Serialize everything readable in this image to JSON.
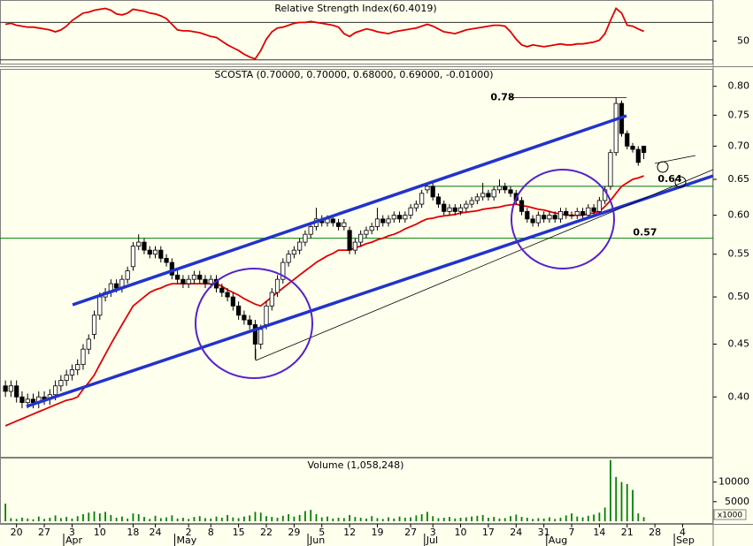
{
  "chart_data": [
    {
      "type": "line",
      "title": "Relative Strength Index(60.4019)",
      "color": "#e00000",
      "values": [
        68,
        69,
        67,
        66,
        65,
        65,
        64,
        63,
        62,
        60,
        62,
        66,
        72,
        76,
        80,
        81,
        83,
        84,
        85,
        83,
        79,
        78,
        80,
        84,
        83,
        82,
        80,
        79,
        77,
        74,
        68,
        62,
        61,
        61,
        60,
        59,
        57,
        55,
        54,
        50,
        46,
        43,
        40,
        36,
        33,
        31,
        40,
        52,
        60,
        64,
        65,
        67,
        69,
        70,
        70,
        71,
        70,
        69,
        68,
        67,
        65,
        58,
        55,
        59,
        61,
        63,
        62,
        60,
        59,
        58,
        60,
        61,
        62,
        63,
        64,
        66,
        68,
        66,
        63,
        60,
        59,
        58,
        60,
        62,
        63,
        64,
        65,
        66,
        67,
        67,
        66,
        60,
        52,
        46,
        44,
        46,
        45,
        44,
        45,
        46,
        47,
        46,
        46,
        47,
        47,
        48,
        49,
        51,
        58,
        72,
        85,
        80,
        67,
        66,
        63,
        60.4019,
        null,
        null,
        null,
        null,
        null,
        null,
        null,
        null,
        null,
        null,
        null,
        null
      ],
      "ylim": [
        26,
        93
      ],
      "yticks": [
        50
      ],
      "hlines": [
        30,
        70
      ]
    },
    {
      "type": "candlestick",
      "title": "SCOSTA (0.70000, 0.70000, 0.68000, 0.69000, -0.01000)",
      "log_scale": true,
      "open": [
        0.41,
        0.405,
        0.41,
        0.4,
        0.395,
        0.398,
        0.395,
        0.4,
        0.398,
        0.402,
        0.41,
        0.415,
        0.42,
        0.425,
        0.43,
        0.445,
        0.46,
        0.48,
        0.5,
        0.505,
        0.515,
        0.51,
        0.52,
        0.535,
        0.56,
        0.565,
        0.555,
        0.55,
        0.555,
        0.545,
        0.54,
        0.525,
        0.52,
        0.515,
        0.52,
        0.525,
        0.52,
        0.515,
        0.52,
        0.51,
        0.505,
        0.5,
        0.49,
        0.48,
        0.475,
        0.47,
        0.45,
        0.47,
        0.49,
        0.505,
        0.52,
        0.54,
        0.55,
        0.555,
        0.565,
        0.575,
        0.585,
        0.595,
        0.59,
        0.595,
        0.59,
        0.585,
        0.58,
        0.555,
        0.565,
        0.575,
        0.58,
        0.585,
        0.595,
        0.59,
        0.595,
        0.6,
        0.595,
        0.6,
        0.61,
        0.615,
        0.635,
        0.64,
        0.625,
        0.615,
        0.605,
        0.61,
        0.605,
        0.61,
        0.615,
        0.62,
        0.625,
        0.63,
        0.625,
        0.635,
        0.64,
        0.635,
        0.63,
        0.62,
        0.605,
        0.595,
        0.59,
        0.6,
        0.595,
        0.6,
        0.595,
        0.605,
        0.6,
        0.6,
        0.605,
        0.6,
        0.61,
        0.605,
        0.62,
        0.64,
        0.69,
        0.77,
        0.72,
        0.7,
        0.695,
        0.7,
        null,
        null,
        null,
        null,
        null,
        null,
        null,
        null,
        null,
        null,
        null,
        null
      ],
      "high": [
        0.415,
        0.415,
        0.415,
        0.405,
        0.403,
        0.403,
        0.405,
        0.405,
        0.407,
        0.415,
        0.42,
        0.425,
        0.43,
        0.435,
        0.45,
        0.46,
        0.485,
        0.505,
        0.51,
        0.52,
        0.52,
        0.525,
        0.535,
        0.565,
        0.575,
        0.57,
        0.56,
        0.56,
        0.56,
        0.55,
        0.545,
        0.53,
        0.525,
        0.525,
        0.53,
        0.53,
        0.525,
        0.525,
        0.525,
        0.515,
        0.51,
        0.505,
        0.495,
        0.485,
        0.48,
        0.475,
        0.47,
        0.495,
        0.51,
        0.525,
        0.545,
        0.555,
        0.56,
        0.57,
        0.58,
        0.59,
        0.61,
        0.6,
        0.6,
        0.6,
        0.595,
        0.595,
        0.585,
        0.57,
        0.58,
        0.585,
        0.59,
        0.61,
        0.6,
        0.6,
        0.605,
        0.605,
        0.605,
        0.615,
        0.62,
        0.635,
        0.645,
        0.645,
        0.63,
        0.62,
        0.615,
        0.615,
        0.615,
        0.62,
        0.625,
        0.63,
        0.645,
        0.635,
        0.64,
        0.65,
        0.645,
        0.64,
        0.635,
        0.625,
        0.61,
        0.6,
        0.605,
        0.605,
        0.605,
        0.605,
        0.61,
        0.61,
        0.605,
        0.61,
        0.61,
        0.615,
        0.615,
        0.625,
        0.64,
        0.695,
        0.78,
        0.775,
        0.725,
        0.705,
        0.7,
        0.7,
        null,
        null,
        null,
        null,
        null,
        null,
        null,
        null,
        null,
        null,
        null,
        null
      ],
      "low": [
        0.4,
        0.4,
        0.395,
        0.39,
        0.39,
        0.39,
        0.39,
        0.393,
        0.393,
        0.397,
        0.405,
        0.41,
        0.415,
        0.42,
        0.425,
        0.44,
        0.455,
        0.475,
        0.495,
        0.5,
        0.505,
        0.505,
        0.515,
        0.53,
        0.555,
        0.55,
        0.545,
        0.545,
        0.54,
        0.535,
        0.52,
        0.515,
        0.51,
        0.51,
        0.515,
        0.515,
        0.51,
        0.51,
        0.505,
        0.5,
        0.495,
        0.485,
        0.475,
        0.47,
        0.465,
        0.435,
        0.445,
        0.465,
        0.485,
        0.5,
        0.515,
        0.535,
        0.545,
        0.55,
        0.56,
        0.57,
        0.58,
        0.585,
        0.585,
        0.585,
        0.58,
        0.58,
        0.55,
        0.55,
        0.56,
        0.57,
        0.575,
        0.58,
        0.585,
        0.585,
        0.59,
        0.59,
        0.59,
        0.595,
        0.605,
        0.61,
        0.63,
        0.62,
        0.61,
        0.6,
        0.6,
        0.6,
        0.6,
        0.605,
        0.61,
        0.615,
        0.62,
        0.62,
        0.62,
        0.63,
        0.63,
        0.625,
        0.615,
        0.6,
        0.59,
        0.585,
        0.585,
        0.59,
        0.59,
        0.59,
        0.59,
        0.595,
        0.595,
        0.595,
        0.595,
        0.595,
        0.6,
        0.6,
        0.615,
        0.635,
        0.685,
        0.715,
        0.695,
        0.69,
        0.67,
        0.68,
        null,
        null,
        null,
        null,
        null,
        null,
        null,
        null,
        null,
        null,
        null,
        null
      ],
      "close": [
        0.405,
        0.41,
        0.4,
        0.395,
        0.398,
        0.395,
        0.4,
        0.398,
        0.402,
        0.41,
        0.415,
        0.42,
        0.425,
        0.43,
        0.445,
        0.455,
        0.48,
        0.5,
        0.505,
        0.515,
        0.51,
        0.52,
        0.53,
        0.56,
        0.565,
        0.555,
        0.55,
        0.555,
        0.545,
        0.54,
        0.525,
        0.52,
        0.515,
        0.52,
        0.525,
        0.52,
        0.515,
        0.52,
        0.51,
        0.505,
        0.5,
        0.49,
        0.48,
        0.475,
        0.47,
        0.45,
        0.465,
        0.49,
        0.505,
        0.52,
        0.54,
        0.55,
        0.555,
        0.565,
        0.575,
        0.585,
        0.595,
        0.59,
        0.595,
        0.59,
        0.585,
        0.59,
        0.555,
        0.565,
        0.575,
        0.58,
        0.585,
        0.595,
        0.59,
        0.595,
        0.6,
        0.595,
        0.6,
        0.61,
        0.615,
        0.63,
        0.64,
        0.625,
        0.615,
        0.605,
        0.61,
        0.605,
        0.61,
        0.615,
        0.62,
        0.625,
        0.63,
        0.625,
        0.635,
        0.64,
        0.635,
        0.63,
        0.62,
        0.605,
        0.595,
        0.59,
        0.6,
        0.595,
        0.6,
        0.595,
        0.605,
        0.6,
        0.6,
        0.605,
        0.6,
        0.61,
        0.605,
        0.62,
        0.635,
        0.69,
        0.77,
        0.72,
        0.7,
        0.695,
        0.675,
        0.69,
        null,
        null,
        null,
        null,
        null,
        null,
        null,
        null,
        null,
        null,
        null,
        null
      ],
      "series": [
        {
          "color": "#e00000",
          "values": [
            0.375,
            0.377,
            0.379,
            0.381,
            0.383,
            0.385,
            0.387,
            0.389,
            0.391,
            0.393,
            0.395,
            0.397,
            0.398,
            0.4,
            0.407,
            0.413,
            0.42,
            0.43,
            0.44,
            0.45,
            0.46,
            0.47,
            0.48,
            0.49,
            0.495,
            0.5,
            0.505,
            0.508,
            0.51,
            0.513,
            0.515,
            0.515,
            0.515,
            0.515,
            0.515,
            0.515,
            0.515,
            0.515,
            0.515,
            0.512,
            0.508,
            0.505,
            0.502,
            0.498,
            0.495,
            0.492,
            0.49,
            0.495,
            0.5,
            0.505,
            0.51,
            0.515,
            0.52,
            0.525,
            0.53,
            0.535,
            0.54,
            0.544,
            0.548,
            0.551,
            0.555,
            0.555,
            0.555,
            0.558,
            0.56,
            0.563,
            0.565,
            0.568,
            0.57,
            0.573,
            0.575,
            0.578,
            0.582,
            0.585,
            0.588,
            0.592,
            0.595,
            0.596,
            0.598,
            0.599,
            0.6,
            0.601,
            0.603,
            0.604,
            0.605,
            0.606,
            0.608,
            0.609,
            0.61,
            0.611,
            0.613,
            0.614,
            0.615,
            0.613,
            0.612,
            0.61,
            0.608,
            0.607,
            0.605,
            0.603,
            0.602,
            0.6,
            0.6,
            0.6,
            0.6,
            0.602,
            0.603,
            0.605,
            0.612,
            0.62,
            0.63,
            0.64,
            0.645,
            0.65,
            0.652,
            0.655,
            null,
            null,
            null,
            null,
            null,
            null,
            null,
            null,
            null,
            null,
            null,
            null
          ]
        }
      ],
      "ylim": [
        0.35,
        0.83
      ],
      "yticks": [
        {
          "value": 0.4,
          "label": "0.40"
        },
        0.45,
        {
          "value": 0.5,
          "label": "0.50"
        },
        0.55,
        {
          "value": 0.6,
          "label": "0.60"
        },
        0.65,
        {
          "value": 0.7,
          "label": "0.70"
        },
        0.75,
        {
          "value": 0.8,
          "label": "0.80"
        }
      ],
      "hlines": [
        {
          "value": 0.78,
          "color": "#e00000"
        },
        {
          "value": 0.64,
          "color": "#007000"
        },
        {
          "value": 0.57,
          "color": "#008000"
        }
      ]
    },
    {
      "type": "bar",
      "title": "Volume (1,058,248)",
      "color": "#008000",
      "unit_label": "x1000",
      "categories": [
        null,
        null,
        "20",
        null,
        null,
        null,
        null,
        "27",
        null,
        null,
        null,
        null,
        "3",
        null,
        null,
        null,
        null,
        "10",
        null,
        null,
        null,
        null,
        null,
        "18",
        null,
        null,
        null,
        "24",
        null,
        null,
        null,
        null,
        null,
        "2",
        null,
        null,
        null,
        "8",
        null,
        null,
        null,
        null,
        "15",
        null,
        null,
        null,
        null,
        "22",
        null,
        null,
        null,
        null,
        "29",
        null,
        null,
        null,
        null,
        "5",
        null,
        null,
        null,
        null,
        "12",
        null,
        null,
        null,
        null,
        "19",
        null,
        null,
        null,
        null,
        null,
        "27",
        null,
        null,
        null,
        "3",
        null,
        null,
        null,
        null,
        "10",
        null,
        null,
        null,
        null,
        "17",
        null,
        null,
        null,
        null,
        "24",
        null,
        null,
        null,
        null,
        "31",
        null,
        null,
        null,
        null,
        "7",
        null,
        null,
        null,
        null,
        "14",
        null,
        null,
        null,
        null,
        "21",
        null,
        null,
        null,
        null,
        "28",
        null,
        null,
        null,
        null,
        "4",
        null,
        null,
        null,
        null,
        null
      ],
      "months": [
        null,
        null,
        null,
        null,
        null,
        null,
        null,
        null,
        null,
        null,
        null,
        "Apr",
        null,
        null,
        null,
        null,
        null,
        null,
        null,
        null,
        null,
        null,
        null,
        null,
        null,
        null,
        null,
        null,
        null,
        null,
        null,
        "May",
        null,
        null,
        null,
        null,
        null,
        null,
        null,
        null,
        null,
        null,
        null,
        null,
        null,
        null,
        null,
        null,
        null,
        null,
        null,
        null,
        null,
        null,
        null,
        "Jun",
        null,
        null,
        null,
        null,
        null,
        null,
        null,
        null,
        null,
        null,
        null,
        null,
        null,
        null,
        null,
        null,
        null,
        null,
        null,
        null,
        "Jul",
        null,
        null,
        null,
        null,
        null,
        null,
        null,
        null,
        null,
        null,
        null,
        null,
        null,
        null,
        null,
        null,
        null,
        null,
        null,
        null,
        null,
        "Aug",
        null,
        null,
        null,
        null,
        null,
        null,
        null,
        null,
        null,
        null,
        null,
        null,
        null,
        null,
        null,
        null,
        null,
        null,
        null,
        null,
        null,
        null,
        "Sep",
        null,
        null,
        null,
        null,
        null,
        null
      ],
      "values": [
        4500,
        800,
        600,
        900,
        700,
        500,
        1200,
        600,
        900,
        1500,
        800,
        1100,
        700,
        1300,
        1800,
        2200,
        2500,
        2000,
        2400,
        1600,
        900,
        1200,
        700,
        2000,
        1800,
        1100,
        600,
        1400,
        800,
        1000,
        1500,
        700,
        900,
        600,
        1100,
        1300,
        800,
        700,
        1200,
        900,
        1600,
        1000,
        800,
        1200,
        1500,
        2400,
        2200,
        1300,
        1100,
        900,
        1400,
        1800,
        1200,
        1600,
        2600,
        2900,
        1800,
        1000,
        1200,
        700,
        900,
        800,
        1600,
        1100,
        900,
        700,
        1300,
        800,
        600,
        1000,
        700,
        1200,
        900,
        1000,
        1500,
        1800,
        2400,
        1300,
        800,
        900,
        1100,
        700,
        900,
        1000,
        1200,
        1400,
        1600,
        900,
        1100,
        700,
        800,
        1300,
        1700,
        1100,
        900,
        600,
        800,
        700,
        1000,
        600,
        900,
        1500,
        2000,
        1200,
        1000,
        1400,
        1700,
        2200,
        3500,
        15600,
        11300,
        10000,
        9500,
        8000,
        2000,
        1058,
        null,
        null,
        null,
        null,
        null,
        null,
        null,
        null,
        null,
        null,
        null,
        null
      ],
      "ylim": [
        0,
        16000
      ],
      "yticks": [
        5000,
        10000
      ]
    }
  ]
}
